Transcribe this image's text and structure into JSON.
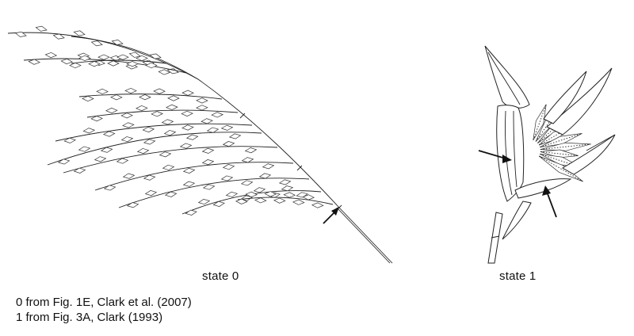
{
  "panels": [
    {
      "state_label": "state 0",
      "illustration": "panicle-icon"
    },
    {
      "state_label": "state 1",
      "illustration": "spikelet-cluster-icon"
    }
  ],
  "credits": [
    "0 from Fig. 1E, Clark et al. (2007)",
    "1 from Fig. 3A, Clark (1993)"
  ],
  "colors": {
    "ink": "#222222",
    "background": "#ffffff"
  }
}
